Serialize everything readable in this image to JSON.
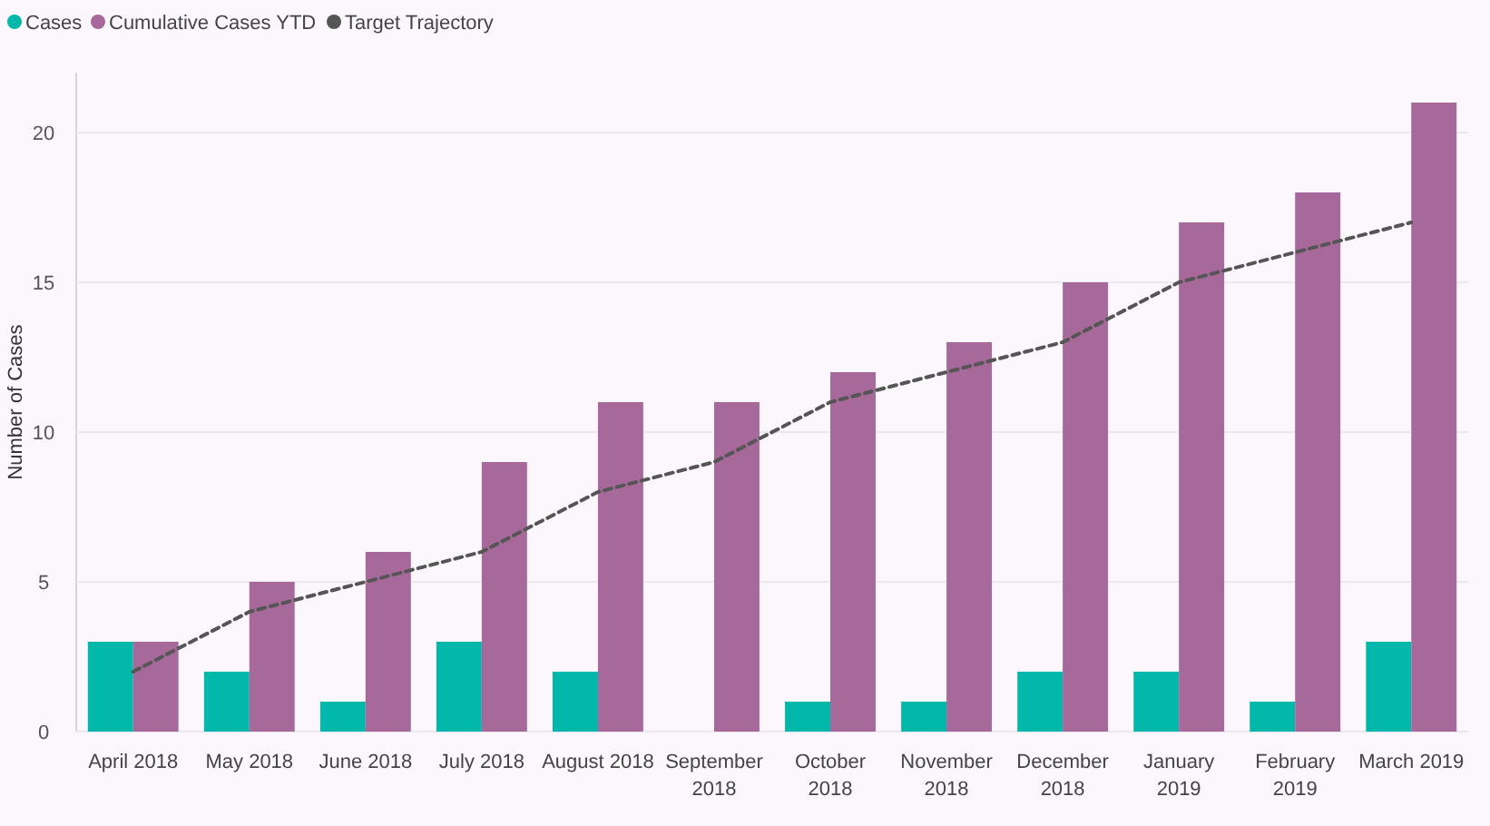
{
  "chart_data": {
    "type": "bar",
    "ylabel": "Number of Cases",
    "categories": [
      "April 2018",
      "May 2018",
      "June 2018",
      "July 2018",
      "August 2018",
      "September 2018",
      "October 2018",
      "November 2018",
      "December 2018",
      "January 2019",
      "February 2019",
      "March 2019"
    ],
    "series": [
      {
        "name": "Cases",
        "color": "#01b8aa",
        "values": [
          3,
          2,
          1,
          3,
          2,
          null,
          1,
          1,
          2,
          2,
          1,
          3
        ]
      },
      {
        "name": "Cumulative Cases YTD",
        "color": "#a66999",
        "values": [
          3,
          5,
          6,
          9,
          11,
          11,
          12,
          13,
          15,
          17,
          18,
          21
        ]
      },
      {
        "name": "Target Trajectory",
        "type": "line",
        "color": "#555555",
        "line_style": "dashed",
        "values": [
          2,
          4,
          5,
          6,
          8,
          9,
          11,
          12,
          13,
          15,
          16,
          17
        ]
      }
    ],
    "ylim": [
      0,
      22
    ],
    "yticks": [
      0,
      5,
      10,
      15,
      20
    ],
    "grid": "y",
    "legend": "top left"
  }
}
